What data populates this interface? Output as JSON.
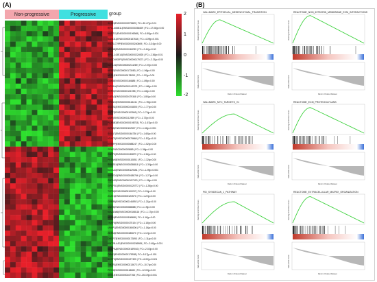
{
  "panels": {
    "a_label": "(A)",
    "b_label": "(B)"
  },
  "heatmap": {
    "groups": [
      {
        "label": "Non-progressive",
        "color": "#f3a6ad"
      },
      {
        "label": "Progressive",
        "color": "#40e0e0"
      }
    ],
    "group_title": "group",
    "colorbar": {
      "ticks": [
        "2",
        "1",
        "0",
        "-1",
        "-2"
      ],
      "high": "#e8202a",
      "mid": "#1a1a1a",
      "low": "#2ee02e"
    },
    "genes": [
      "SCGN|ENSG00000079689 | FC=-30.47|p=0.01",
      "RP11-465B11|ENSG00000254609 | FC=-17.06|p=0.00",
      "NUDT11|ENSG00000196368 | FC=-6.59|p=0.001",
      "SAMD11|ENSG00000187634 | FC=-4.09|p=0.001",
      "RN7SL729P|ENSG00000240669 | FC=-3.34|p=0.00",
      "MEIOB|ENSG00000162039 | FC=-2.41|p=0.00",
      "RP11-143E14|ENSG00000224925 | FC=-2.36|p=0.01",
      "GADD45GIP1|ENSG00000179271 | FC=-2.21|p=0.00",
      "KLHL31|ENSG00000214269 | FC=-2.07|p=0.00",
      "HPSE|ENSG00000173083 | FC=-1.96|p=0.00",
      "MLF1|ENSG00000178053 | FC=-1.92|p=0.00",
      "CDK5|ENSG00000164885 | FC=-1.89|p=0.00",
      "DIPK1A|ENSG00000142973 | FC=-1.86|p=0.00",
      "SRPX|ENSG00000101955 | FC=-1.82|p=0.00",
      "GATA2|ENSG00000179348 | FC=-1.80|p=0.00",
      "PPM1G|ENSG00000115241 | FC=-1.78|p=0.00",
      "NUCB1|ENSG00000104805 | FC=-1.77|p=0.00",
      "FLCT2|ENSG00000103569 | FC=-1.74|p=0.00",
      "MDFI|ENSG00000112559 | FC=-1.72|p=0.00",
      "PLXNB3|ENSG00000198753 | FC=-1.67|p=0.00",
      "EIF5A|ENSG00000132507 | FC=-1.61|p=0.001",
      "SOX17|ENSG00000164736 | FC=-1.60|p=0.00",
      "VDAC3|ENSG00000078668 | FC=-1.57|p=0.00",
      "KHSRP|ENSG00000088247 | FC=-1.52|p=0.00",
      "ZFX|ENSG00000005889 | FC=-1.36|p=0.00",
      "ZNRF3|ENSG00000183579 | FC=-1.34|p=0.00",
      "PRDM4|ENSG00000110851 | FC=-1.32|p=0.00",
      "RNASE4|ENSG00000258818 | FC=-1.30|p=0.00",
      "KLKA10|ENSG00000129451 | FC=-1.29|p=0.001",
      "SPRED3|ENSG00000188766 | FC=-1.27|p=0.00",
      "ZNF100|ENSG00000197020 | FC=-1.26|p=0.00",
      "GPCPD1|ENSG00000125772 | FC=-1.25|p=0.00",
      "TCF20|ENSG00000100207 | FC=-1.24|p=0.00",
      "ZCAT4|ENSG00000123570 | FC=-1.22|p=0.00",
      "CREB5|ENSG00000146592 | FC=-1.21|p=0.00",
      "MAVS|ENSG00000088888 | FC=-1.19|p=0.00",
      "KIAA1586|ENSG00000168116 | FC=-1.17|p=0.00",
      "NPGN|ENSG00000188488 | FC=-1.16|p=0.00",
      "TRAF6|ENSG00000175104 | FC=-1.15|p=0.00",
      "UBAP1|ENSG00000165006 | FC=-1.14|p=0.00",
      "ZBTB3|ENSG00000185670 | FC=-1.12|p=0.00",
      "DHCR7|ENSG00000172893 | FC=-1.11|p=0.00",
      "KMT2B-AS1|ENSG00000236985 | FC=-2.48|p=0.001",
      "NDUFA4|ENSG00000189043 | FC=-2.02|p=0.00",
      "ORAI3|ENSG00000175938 | FC=-5.17|p=0.001",
      "BEST3|ENSG00000127325 | FC=-6.00|p=0.001",
      "TNGR1|ENSG00000213672 | FC=-10.7|p=0.00",
      "PRX3|ENSG00000118680 | FC=-12.09|p=0.00",
      "KRT1|ENSG00000167768 | FC=-35.19|p=0.001"
    ]
  },
  "gsea": {
    "common": {
      "ylabel_top": "Running Enrichment Score",
      "ylabel_bottom": "Ranked list metric",
      "xlabel": "Rank in Ordered Dataset"
    },
    "plots": [
      {
        "title": "HALLMARK_EPITHELIAL_MESENCHYMAL_TRANSITION",
        "peak": 0.55,
        "shape": "early"
      },
      {
        "title": "REACTOME_NON_INTEGRIN_MEMBRANE_ECM_INTERACTIONS",
        "peak": 0.65,
        "shape": "early"
      },
      {
        "title": "HALLMARK_MYC_TARGETS_V1",
        "peak": 0.45,
        "shape": "spread"
      },
      {
        "title": "REACTOME_ECM_PROTEOGLYCANS",
        "peak": 0.6,
        "shape": "early"
      },
      {
        "title": "PID_SYNDECAN_1_PATHWAY",
        "peak": 0.5,
        "shape": "spread"
      },
      {
        "title": "REACTOME_EXTRACELLULAR_MATRIX_ORGANIZATION",
        "peak": 0.62,
        "shape": "early"
      }
    ]
  }
}
